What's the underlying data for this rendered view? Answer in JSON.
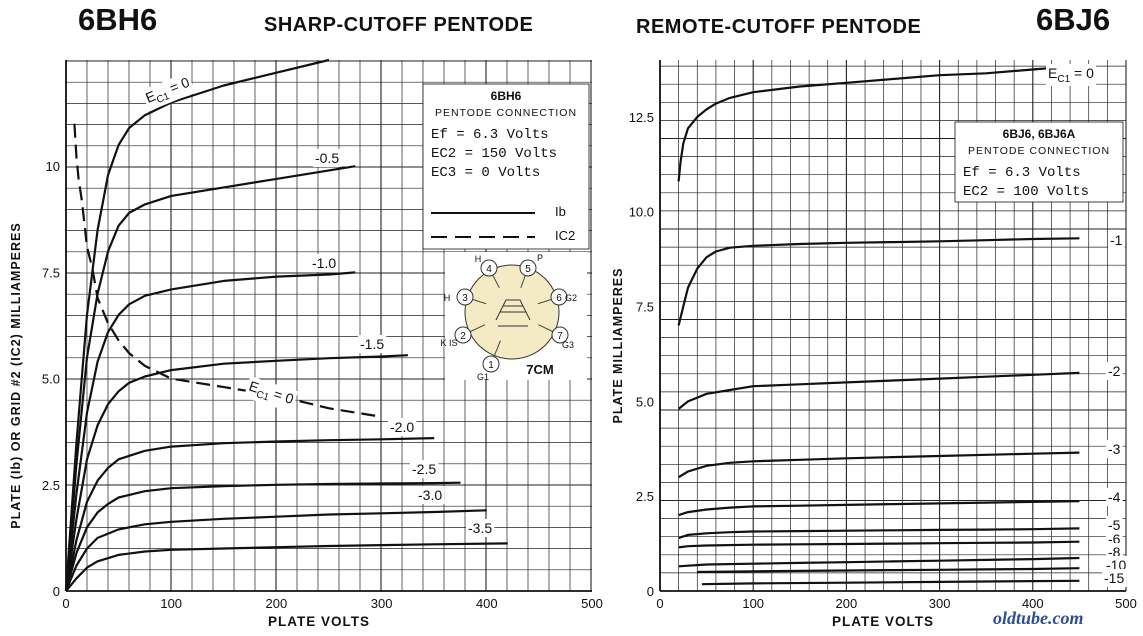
{
  "page": {
    "left_title": "6BH6",
    "left_subtitle": "SHARP-CUTOFF PENTODE",
    "right_subtitle": "REMOTE-CUTOFF PENTODE",
    "right_title": "6BJ6",
    "watermark": "oldtube.com"
  },
  "chart_data": [
    {
      "type": "line",
      "title": "6BH6",
      "subtitle": "SHARP-CUTOFF PENTODE",
      "xlabel": "PLATE VOLTS",
      "ylabel": "PLATE (Ib) OR GRID #2 (IC2) MILLIAMPERES",
      "xlim": [
        0,
        500
      ],
      "ylim": [
        0,
        12.5
      ],
      "xticks": [
        "0",
        "100",
        "200",
        "300",
        "400",
        "500"
      ],
      "yticks": [
        "0",
        "2.5",
        "5.0",
        "7.5",
        "10"
      ],
      "grid": true,
      "legend_box": {
        "tube": "6BH6",
        "connection": "PENTODE CONNECTION",
        "lines": [
          "Ef  = 6.3 Volts",
          "EC2 = 150 Volts",
          "EC3 =   0 Volts"
        ],
        "solid_label": "Ib",
        "dashed_label": "IC2"
      },
      "basing": {
        "code": "7CM",
        "pins": [
          "1",
          "2",
          "3",
          "4",
          "5",
          "6",
          "7"
        ],
        "pin_labels": [
          "H",
          "P",
          "H",
          "G2",
          "K IS",
          "G3",
          "G1"
        ]
      },
      "series": [
        {
          "name": "EC1 = 0",
          "style": "solid",
          "x": [
            0,
            10,
            20,
            30,
            40,
            50,
            60,
            75,
            100,
            150,
            200,
            250
          ],
          "y": [
            0,
            3.5,
            6.5,
            8.5,
            9.8,
            10.5,
            10.9,
            11.2,
            11.5,
            11.9,
            12.2,
            12.5
          ]
        },
        {
          "name": "-0.5",
          "style": "solid",
          "x": [
            0,
            10,
            20,
            30,
            40,
            50,
            60,
            75,
            100,
            150,
            200,
            250,
            275
          ],
          "y": [
            0,
            3.0,
            5.5,
            7.0,
            8.0,
            8.6,
            8.9,
            9.1,
            9.3,
            9.5,
            9.7,
            9.9,
            10.0
          ]
        },
        {
          "name": "-1.0",
          "style": "solid",
          "x": [
            0,
            10,
            20,
            30,
            40,
            50,
            60,
            75,
            100,
            150,
            200,
            250,
            275
          ],
          "y": [
            0,
            2.3,
            4.2,
            5.4,
            6.1,
            6.5,
            6.75,
            6.95,
            7.1,
            7.3,
            7.4,
            7.45,
            7.5
          ]
        },
        {
          "name": "-1.5",
          "style": "solid",
          "x": [
            0,
            10,
            20,
            30,
            40,
            50,
            60,
            75,
            100,
            150,
            200,
            250,
            300,
            325
          ],
          "y": [
            0,
            1.7,
            3.1,
            3.9,
            4.4,
            4.7,
            4.9,
            5.05,
            5.2,
            5.35,
            5.42,
            5.48,
            5.52,
            5.55
          ]
        },
        {
          "name": "-2.0",
          "style": "solid",
          "x": [
            0,
            10,
            20,
            30,
            40,
            50,
            75,
            100,
            150,
            200,
            250,
            300,
            350
          ],
          "y": [
            0,
            1.2,
            2.1,
            2.6,
            2.9,
            3.1,
            3.3,
            3.4,
            3.48,
            3.52,
            3.55,
            3.57,
            3.6
          ]
        },
        {
          "name": "-2.5",
          "style": "solid",
          "x": [
            0,
            10,
            20,
            30,
            40,
            50,
            75,
            100,
            150,
            200,
            250,
            300,
            350,
            375
          ],
          "y": [
            0,
            0.9,
            1.5,
            1.85,
            2.05,
            2.2,
            2.35,
            2.42,
            2.47,
            2.5,
            2.52,
            2.53,
            2.54,
            2.55
          ]
        },
        {
          "name": "-3.0",
          "style": "solid",
          "x": [
            0,
            10,
            20,
            30,
            50,
            75,
            100,
            150,
            200,
            250,
            300,
            350,
            400
          ],
          "y": [
            0,
            0.6,
            1.0,
            1.25,
            1.45,
            1.57,
            1.63,
            1.7,
            1.75,
            1.8,
            1.83,
            1.86,
            1.9
          ]
        },
        {
          "name": "-3.5",
          "style": "solid",
          "x": [
            0,
            10,
            20,
            30,
            50,
            75,
            100,
            150,
            200,
            250,
            300,
            350,
            420
          ],
          "y": [
            0,
            0.3,
            0.55,
            0.7,
            0.85,
            0.93,
            0.97,
            1.0,
            1.03,
            1.06,
            1.08,
            1.1,
            1.12
          ]
        },
        {
          "name": "EC1 = 0",
          "style": "dashed",
          "x": [
            8,
            10,
            12,
            15,
            20,
            25,
            30,
            40,
            50,
            60,
            75,
            100,
            150,
            200,
            250,
            300
          ],
          "y": [
            11.0,
            10.2,
            9.7,
            9.2,
            8.1,
            7.6,
            6.9,
            6.3,
            5.9,
            5.6,
            5.3,
            5.0,
            4.8,
            4.6,
            4.3,
            4.1
          ]
        }
      ]
    },
    {
      "type": "line",
      "title": "6BJ6",
      "subtitle": "REMOTE-CUTOFF PENTODE",
      "xlabel": "PLATE VOLTS",
      "ylabel": "PLATE MILLIAMPERES",
      "xlim": [
        0,
        500
      ],
      "ylim": [
        0,
        14
      ],
      "xticks": [
        "0",
        "100",
        "200",
        "300",
        "400",
        "500"
      ],
      "yticks": [
        "0",
        "2.5",
        "5.0",
        "7.5",
        "10.0",
        "12.5"
      ],
      "grid": true,
      "legend_box": {
        "tube": "6BJ6, 6BJ6A",
        "connection": "PENTODE CONNECTION",
        "lines": [
          "Ef  = 6.3 Volts",
          "EC2 = 100 Volts"
        ]
      },
      "series": [
        {
          "name": "EC1 = 0",
          "style": "solid",
          "x": [
            20,
            22,
            25,
            30,
            40,
            50,
            60,
            75,
            100,
            150,
            200,
            250,
            300,
            350,
            400,
            450
          ],
          "y": [
            10.8,
            11.3,
            11.8,
            12.2,
            12.5,
            12.7,
            12.85,
            13.0,
            13.15,
            13.3,
            13.4,
            13.5,
            13.6,
            13.65,
            13.75,
            13.85
          ]
        },
        {
          "name": "-1",
          "style": "solid",
          "x": [
            20,
            25,
            30,
            40,
            50,
            60,
            75,
            100,
            150,
            200,
            250,
            300,
            350,
            400,
            450
          ],
          "y": [
            7.0,
            7.5,
            8.0,
            8.5,
            8.8,
            8.95,
            9.05,
            9.1,
            9.15,
            9.18,
            9.2,
            9.22,
            9.25,
            9.28,
            9.3
          ]
        },
        {
          "name": "-2",
          "style": "solid",
          "x": [
            20,
            30,
            40,
            50,
            75,
            100,
            150,
            200,
            250,
            300,
            350,
            400,
            450
          ],
          "y": [
            4.8,
            5.0,
            5.1,
            5.2,
            5.3,
            5.4,
            5.45,
            5.5,
            5.55,
            5.6,
            5.65,
            5.7,
            5.75
          ]
        },
        {
          "name": "-3",
          "style": "solid",
          "x": [
            20,
            30,
            50,
            75,
            100,
            150,
            200,
            250,
            300,
            350,
            400,
            450
          ],
          "y": [
            3.0,
            3.15,
            3.3,
            3.38,
            3.42,
            3.46,
            3.5,
            3.53,
            3.56,
            3.59,
            3.62,
            3.65
          ]
        },
        {
          "name": "-4",
          "style": "solid",
          "x": [
            20,
            30,
            50,
            75,
            100,
            150,
            200,
            250,
            300,
            350,
            400,
            450
          ],
          "y": [
            2.0,
            2.08,
            2.15,
            2.2,
            2.23,
            2.25,
            2.27,
            2.29,
            2.31,
            2.33,
            2.35,
            2.37
          ]
        },
        {
          "name": "-5",
          "style": "solid",
          "x": [
            20,
            30,
            50,
            75,
            100,
            150,
            200,
            250,
            300,
            350,
            400,
            450
          ],
          "y": [
            1.4,
            1.48,
            1.52,
            1.55,
            1.57,
            1.58,
            1.59,
            1.6,
            1.61,
            1.62,
            1.63,
            1.65
          ]
        },
        {
          "name": "-6",
          "style": "solid",
          "x": [
            20,
            30,
            50,
            100,
            150,
            200,
            250,
            300,
            350,
            400,
            450
          ],
          "y": [
            1.15,
            1.18,
            1.2,
            1.22,
            1.23,
            1.24,
            1.25,
            1.26,
            1.27,
            1.28,
            1.3
          ]
        },
        {
          "name": "-8",
          "style": "solid",
          "x": [
            20,
            50,
            100,
            150,
            200,
            250,
            300,
            350,
            400,
            450
          ],
          "y": [
            0.65,
            0.7,
            0.72,
            0.74,
            0.76,
            0.78,
            0.8,
            0.82,
            0.84,
            0.87
          ]
        },
        {
          "name": "-10",
          "style": "solid",
          "x": [
            40,
            100,
            150,
            200,
            250,
            300,
            350,
            400,
            450
          ],
          "y": [
            0.5,
            0.52,
            0.53,
            0.54,
            0.55,
            0.56,
            0.57,
            0.58,
            0.6
          ]
        },
        {
          "name": "-15",
          "style": "solid",
          "x": [
            45,
            100,
            200,
            300,
            400,
            450
          ],
          "y": [
            0.18,
            0.2,
            0.22,
            0.24,
            0.26,
            0.27
          ]
        }
      ]
    }
  ]
}
